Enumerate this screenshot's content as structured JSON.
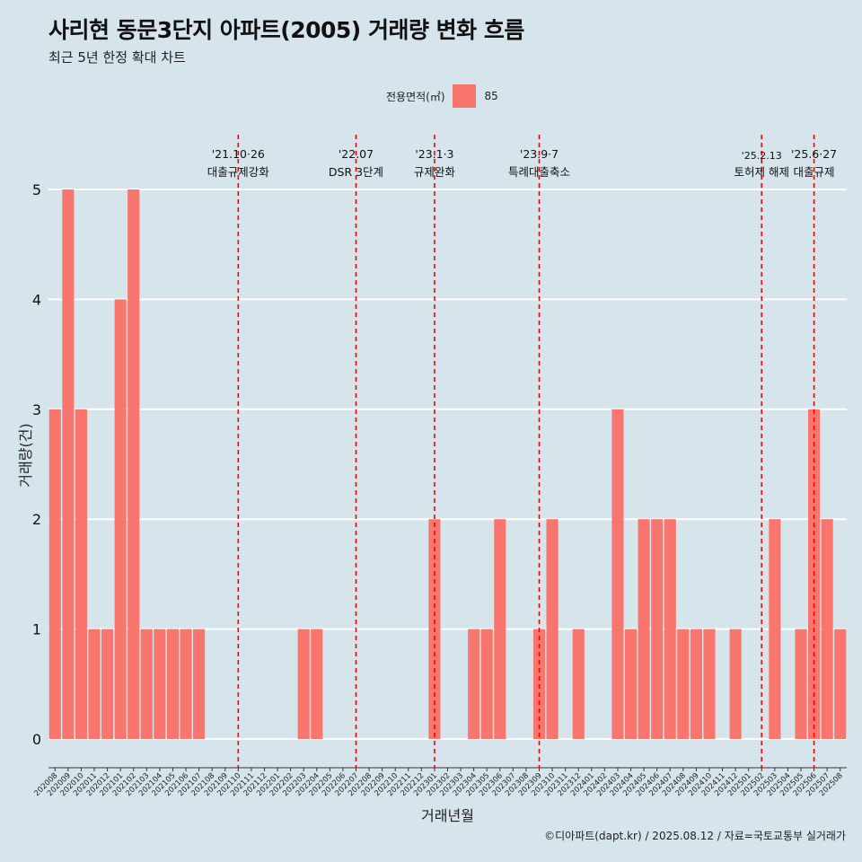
{
  "chart_data": {
    "type": "bar",
    "title": "사리현 동문3단지 아파트(2005) 거래량 변화 흐름",
    "subtitle": "최근 5년 한정 확대 차트",
    "xlabel": "거래년월",
    "ylabel": "거래량(건)",
    "ylim": [
      0,
      5
    ],
    "yticks": [
      "0",
      "1",
      "2",
      "3",
      "4",
      "5"
    ],
    "grid": true,
    "legend": {
      "title": "전용면적(㎡)",
      "placement": "top",
      "entries": [
        {
          "name": "85",
          "color": "#f8766d"
        }
      ]
    },
    "categories": [
      "202008",
      "202009",
      "202010",
      "202011",
      "202012",
      "202101",
      "202102",
      "202103",
      "202104",
      "202105",
      "202106",
      "202107",
      "202108",
      "202109",
      "202110",
      "202111",
      "202112",
      "202201",
      "202202",
      "202203",
      "202204",
      "202205",
      "202206",
      "202207",
      "202208",
      "202209",
      "202210",
      "202211",
      "202212",
      "202301",
      "202302",
      "202303",
      "202304",
      "202305",
      "202306",
      "202307",
      "202308",
      "202309",
      "202310",
      "202311",
      "202312",
      "202401",
      "202402",
      "202403",
      "202404",
      "202405",
      "202406",
      "202407",
      "202408",
      "202409",
      "202410",
      "202411",
      "202412",
      "202501",
      "202502",
      "202503",
      "202504",
      "202505",
      "202506",
      "202507",
      "202508"
    ],
    "series": [
      {
        "name": "85",
        "color": "#f8766d",
        "values": [
          3,
          5,
          3,
          1,
          1,
          4,
          5,
          1,
          1,
          1,
          1,
          1,
          0,
          0,
          0,
          0,
          0,
          0,
          0,
          1,
          1,
          0,
          0,
          0,
          0,
          0,
          0,
          0,
          0,
          2,
          0,
          0,
          1,
          1,
          2,
          0,
          0,
          1,
          2,
          0,
          1,
          0,
          0,
          3,
          1,
          2,
          2,
          2,
          1,
          1,
          1,
          0,
          1,
          0,
          0,
          2,
          0,
          1,
          3,
          2,
          1
        ]
      }
    ],
    "annotations": [
      {
        "at": "202110",
        "date": "'21.10·26",
        "text": "대출규제강화"
      },
      {
        "at": "202207",
        "date": "'22.07",
        "text": "DSR 3단계"
      },
      {
        "at": "202301",
        "date": "'23.1·3",
        "text": "규제완화"
      },
      {
        "at": "202309",
        "date": "'23.9·7",
        "text": "특례대출축소"
      },
      {
        "at": "202502",
        "date": "'25.2.13",
        "text": "토허제 해제"
      },
      {
        "at": "202506",
        "date": "'25.6·27",
        "text": "대출규제"
      }
    ],
    "caption": "©디아파트(dapt.kr) / 2025.08.12 / 자료=국토교통부 실거래가",
    "colors": {
      "bar": "#f8766d",
      "background": "#d6e4eb",
      "grid": "#ffffff",
      "vline": "#ff0000"
    }
  }
}
